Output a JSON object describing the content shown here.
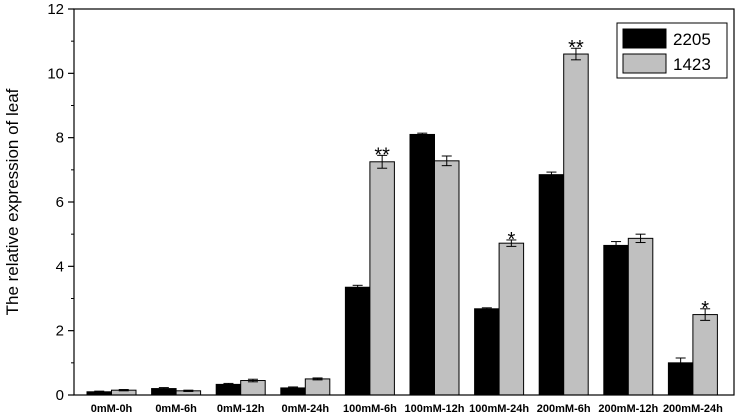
{
  "chart_data": {
    "type": "bar",
    "title": "",
    "xlabel": "",
    "ylabel": "The relative expression of leaf",
    "ylim": [
      0,
      12
    ],
    "yticks": [
      0,
      2,
      4,
      6,
      8,
      10,
      12
    ],
    "grid": false,
    "legend_position": "top-right",
    "categories": [
      "0mM-0h",
      "0mM-6h",
      "0mM-12h",
      "0mM-24h",
      "100mM-6h",
      "100mM-12h",
      "100mM-24h",
      "200mM-6h",
      "200mM-12h",
      "200mM-24h"
    ],
    "series": [
      {
        "name": "2205",
        "color": "#000000",
        "values": [
          0.1,
          0.2,
          0.33,
          0.22,
          3.35,
          8.1,
          2.68,
          6.85,
          4.65,
          1.0
        ],
        "errors": [
          0.02,
          0.03,
          0.03,
          0.03,
          0.06,
          0.04,
          0.03,
          0.08,
          0.12,
          0.15
        ],
        "significance": [
          "",
          "",
          "",
          "",
          "",
          "",
          "",
          "",
          "",
          ""
        ]
      },
      {
        "name": "1423",
        "color": "#c0c0c0",
        "values": [
          0.15,
          0.13,
          0.45,
          0.5,
          7.25,
          7.28,
          4.72,
          10.6,
          4.87,
          2.5
        ],
        "errors": [
          0.02,
          0.02,
          0.04,
          0.03,
          0.2,
          0.15,
          0.1,
          0.18,
          0.13,
          0.18
        ],
        "significance": [
          "",
          "",
          "",
          "",
          "**",
          "",
          "*",
          "**",
          "",
          "*"
        ]
      }
    ]
  }
}
